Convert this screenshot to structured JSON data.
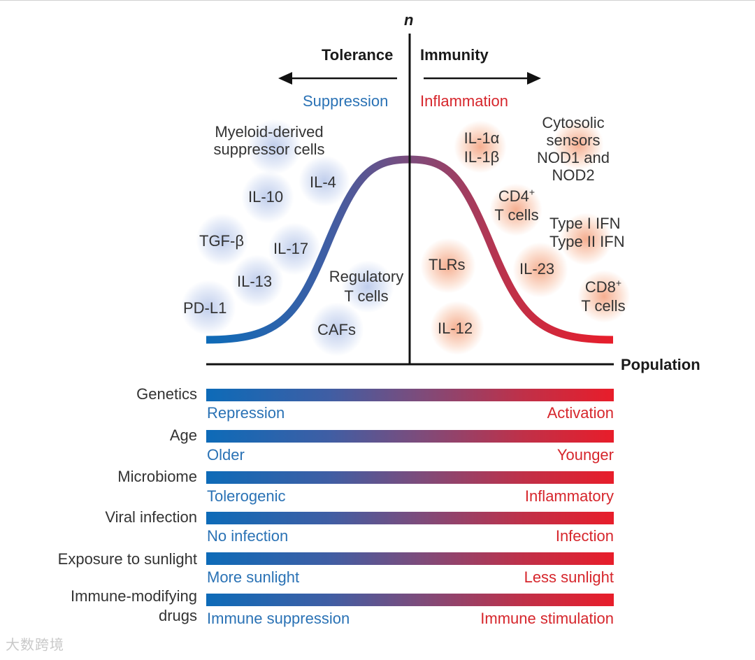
{
  "axes": {
    "y_label": "n",
    "x_label": "Population",
    "left_direction": "Tolerance",
    "right_direction": "Immunity",
    "left_mode": "Suppression",
    "right_mode": "Inflammation"
  },
  "suppressive_factors": {
    "mdsc_line1": "Myeloid-derived",
    "mdsc_line2": "suppressor cells",
    "il4": "IL-4",
    "il10": "IL-10",
    "tgfb": "TGF-β",
    "il17": "IL-17",
    "il13": "IL-13",
    "pdl1": "PD-L1",
    "treg_line1": "Regulatory",
    "treg_line2": "T cells",
    "cafs": "CAFs"
  },
  "inflammatory_factors": {
    "il1a": "IL-1α",
    "il1b": "IL-1β",
    "cyto_line1": "Cytosolic",
    "cyto_line2": "sensors",
    "cyto_line3": "NOD1 and",
    "cyto_line4": "NOD2",
    "cd4_main": "CD4",
    "cd4_sup": "+",
    "cd4_line2": "T cells",
    "ifn1": "Type I IFN",
    "ifn2": "Type II IFN",
    "tlrs": "TLRs",
    "il23": "IL-23",
    "cd8_main": "CD8",
    "cd8_sup": "+",
    "cd8_line2": "T cells",
    "il12": "IL-12"
  },
  "factors": [
    {
      "name": "Genetics",
      "left": "Repression",
      "right": "Activation"
    },
    {
      "name": "Age",
      "left": "Older",
      "right": "Younger"
    },
    {
      "name": "Microbiome",
      "left": "Tolerogenic",
      "right": "Inflammatory"
    },
    {
      "name": "Viral infection",
      "left": "No infection",
      "right": "Infection"
    },
    {
      "name": "Exposure to sunlight",
      "left": "More sunlight",
      "right": "Less sunlight"
    },
    {
      "name_line1": "Immune-modifying",
      "name_line2": "drugs",
      "left": "Immune suppression",
      "right": "Immune stimulation"
    }
  ],
  "colors": {
    "suppression": "#2a72b5",
    "inflammation": "#d6262c"
  },
  "watermark": "大数跨境"
}
